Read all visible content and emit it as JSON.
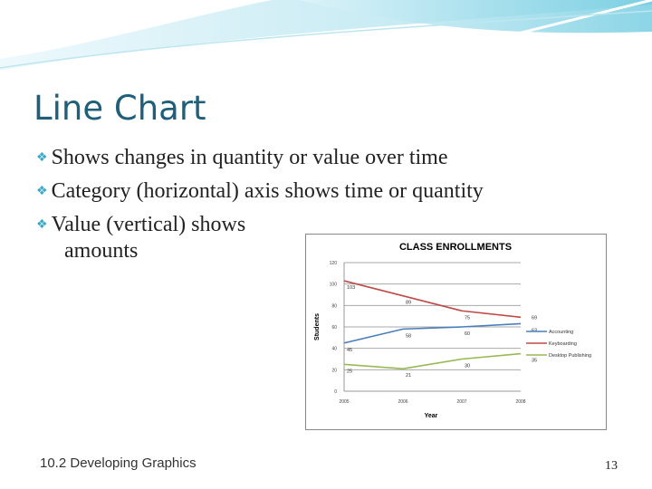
{
  "slide": {
    "title": "Line Chart",
    "bullets": [
      "Shows changes in quantity or value over time",
      "Category (horizontal) axis shows time or quantity",
      "Value (vertical) shows",
      "amounts"
    ],
    "footer": "10.2 Developing Graphics",
    "page_number": "13",
    "accent": "#3aa8c8"
  },
  "chart_data": {
    "type": "line",
    "title": "CLASS ENROLLMENTS",
    "xlabel": "Year",
    "ylabel": "Students",
    "categories": [
      "2005",
      "2006",
      "2007",
      "2008"
    ],
    "ylim": [
      0,
      120
    ],
    "yticks": [
      0,
      20,
      40,
      60,
      80,
      100,
      120
    ],
    "grid": true,
    "legend": "right",
    "series": [
      {
        "name": "Accounting",
        "values": [
          45,
          58,
          60,
          63
        ],
        "color": "#4a7ebb"
      },
      {
        "name": "Keyboarding",
        "values": [
          103,
          89,
          75,
          69
        ],
        "color": "#be4b48"
      },
      {
        "name": "Desktop Publishing",
        "values": [
          25,
          21,
          30,
          35
        ],
        "color": "#98b954"
      }
    ]
  }
}
